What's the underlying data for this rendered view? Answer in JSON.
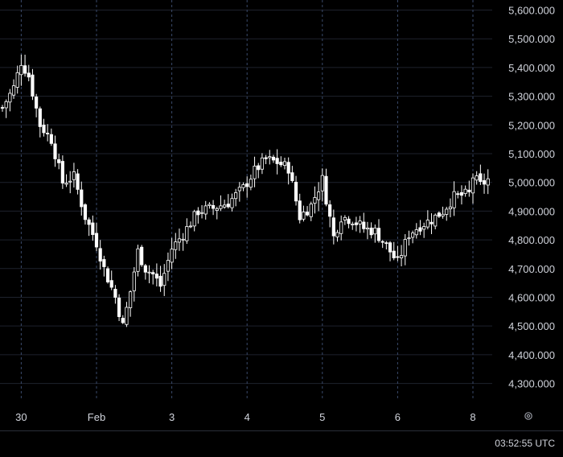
{
  "chart_data": {
    "type": "candlestick",
    "y_ticks": [
      "5,600.000",
      "5,500.000",
      "5,400.000",
      "5,300.000",
      "5,200.000",
      "5,100.000",
      "5,000.000",
      "4,900.000",
      "4,800.000",
      "4,700.000",
      "4,600.000",
      "4,500.000",
      "4,400.000",
      "4,300.000"
    ],
    "y_tick_values": [
      5600,
      5500,
      5400,
      5300,
      5200,
      5100,
      5000,
      4900,
      4800,
      4700,
      4600,
      4500,
      4400,
      4300
    ],
    "ylim": [
      4240,
      5635
    ],
    "x_ticks": [
      "30",
      "Feb",
      "3",
      "4",
      "5",
      "6",
      "8"
    ],
    "x_tick_bar_index": [
      5,
      25,
      45,
      65,
      85,
      105,
      125
    ],
    "bar_count": 140,
    "grid": true,
    "colors": {
      "background": "#000000",
      "candle": "#ffffff",
      "grid": "#1e222d",
      "session_line": "#3a4a6b"
    },
    "close_path": [
      [
        0,
        5260
      ],
      [
        3,
        5330
      ],
      [
        5,
        5420
      ],
      [
        7,
        5370
      ],
      [
        10,
        5200
      ],
      [
        13,
        5150
      ],
      [
        16,
        5000
      ],
      [
        19,
        5020
      ],
      [
        22,
        4880
      ],
      [
        25,
        4790
      ],
      [
        27,
        4700
      ],
      [
        30,
        4600
      ],
      [
        32,
        4500
      ],
      [
        34,
        4620
      ],
      [
        36,
        4760
      ],
      [
        38,
        4700
      ],
      [
        40,
        4680
      ],
      [
        42,
        4640
      ],
      [
        45,
        4770
      ],
      [
        48,
        4820
      ],
      [
        52,
        4900
      ],
      [
        56,
        4910
      ],
      [
        60,
        4930
      ],
      [
        64,
        4980
      ],
      [
        67,
        5040
      ],
      [
        70,
        5080
      ],
      [
        73,
        5070
      ],
      [
        76,
        5050
      ],
      [
        79,
        4880
      ],
      [
        82,
        4920
      ],
      [
        85,
        5010
      ],
      [
        88,
        4810
      ],
      [
        90,
        4880
      ],
      [
        93,
        4870
      ],
      [
        96,
        4840
      ],
      [
        99,
        4830
      ],
      [
        102,
        4780
      ],
      [
        105,
        4720
      ],
      [
        108,
        4820
      ],
      [
        111,
        4850
      ],
      [
        114,
        4870
      ],
      [
        117,
        4900
      ],
      [
        120,
        4950
      ],
      [
        124,
        4960
      ],
      [
        125,
        5020
      ],
      [
        127,
        4990
      ],
      [
        129,
        5010
      ]
    ],
    "shape": {
      "session_starts": [
        5,
        25,
        45,
        65,
        85,
        105,
        125
      ],
      "weekend_gap_after": 129
    }
  },
  "footer": {
    "clock": "03:52:55 UTC",
    "settings_icon": "gear-icon"
  }
}
